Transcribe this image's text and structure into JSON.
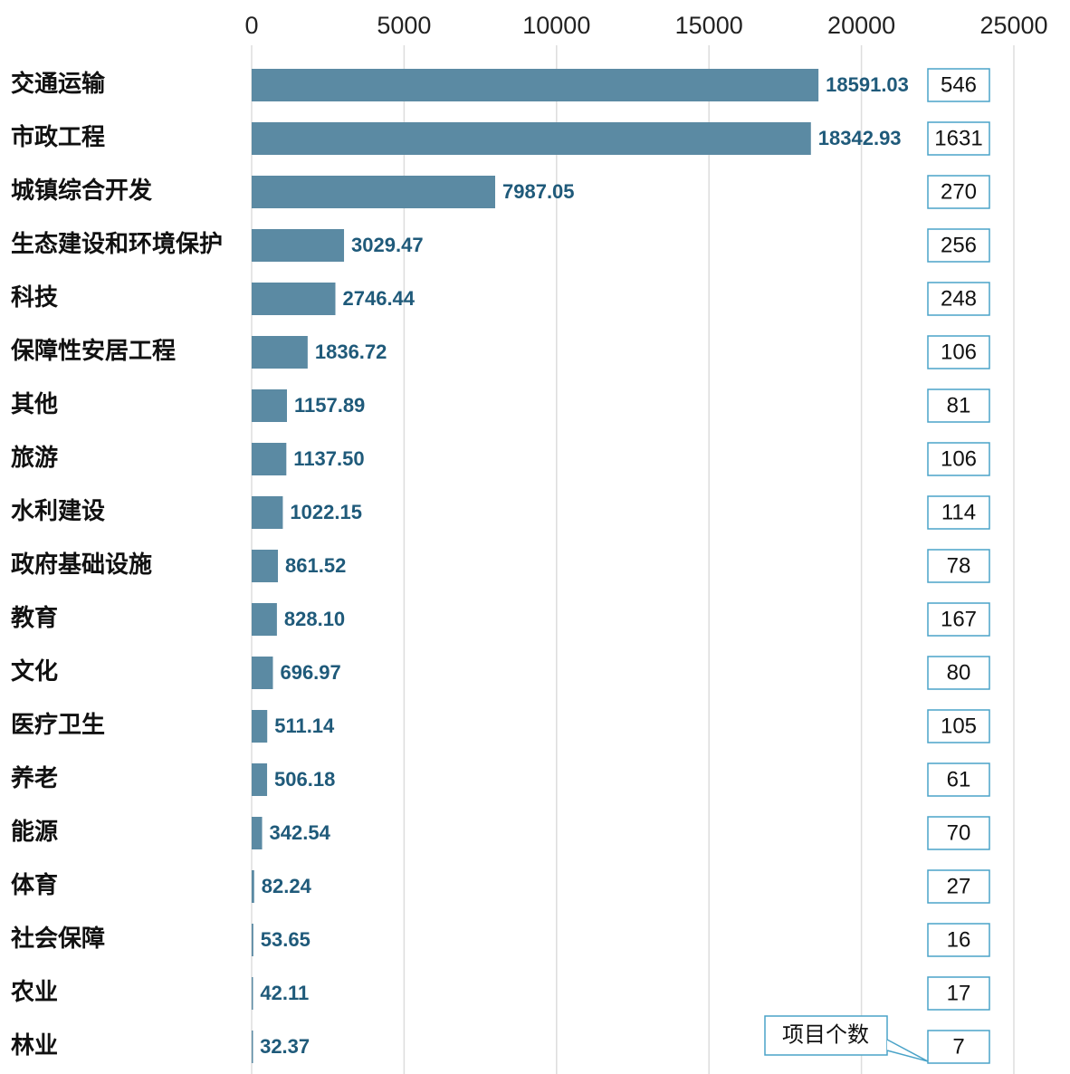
{
  "chart_data": {
    "type": "bar",
    "orientation": "horizontal",
    "categories": [
      "交通运输",
      "市政工程",
      "城镇综合开发",
      "生态建设和环境保护",
      "科技",
      "保障性安居工程",
      "其他",
      "旅游",
      "水利建设",
      "政府基础设施",
      "教育",
      "文化",
      "医疗卫生",
      "养老",
      "能源",
      "体育",
      "社会保障",
      "农业",
      "林业"
    ],
    "values": [
      18591.03,
      18342.93,
      7987.05,
      3029.47,
      2746.44,
      1836.72,
      1157.89,
      1137.5,
      1022.15,
      861.52,
      828.1,
      696.97,
      511.14,
      506.18,
      342.54,
      82.24,
      53.65,
      42.11,
      32.37
    ],
    "value_labels": [
      "18591.03",
      "18342.93",
      "7987.05",
      "3029.47",
      "2746.44",
      "1836.72",
      "1157.89",
      "1137.50",
      "1022.15",
      "861.52",
      "828.10",
      "696.97",
      "511.14",
      "506.18",
      "342.54",
      "82.24",
      "53.65",
      "42.11",
      "32.37"
    ],
    "counts": [
      546,
      1631,
      270,
      256,
      248,
      106,
      81,
      106,
      114,
      78,
      167,
      80,
      105,
      61,
      70,
      27,
      16,
      17,
      7
    ],
    "counts_label": "项目个数",
    "color": "#5b8aa3",
    "xlim": [
      0,
      25000
    ],
    "xticks": [
      0,
      5000,
      10000,
      15000,
      20000,
      25000
    ],
    "grid": true
  }
}
